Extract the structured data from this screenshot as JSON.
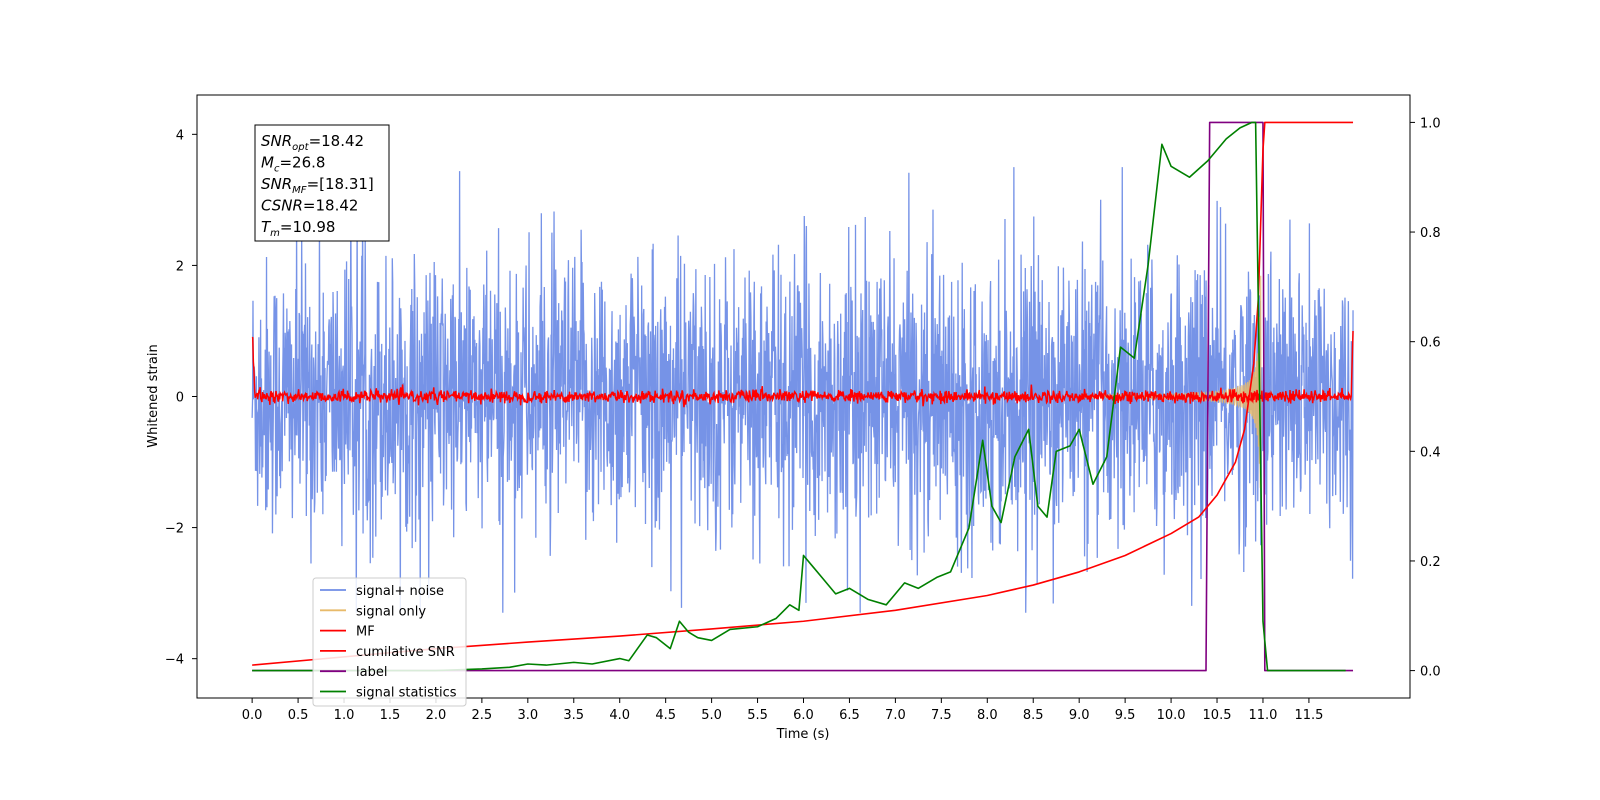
{
  "chart_data": {
    "type": "line",
    "title": "",
    "xlabel": "Time (s)",
    "ylabel": "Whitened strain",
    "y2label": "",
    "xlim": [
      -0.6,
      12.6
    ],
    "ylim": [
      -4.6,
      4.6
    ],
    "y2lim": [
      -0.05,
      1.05
    ],
    "xticks": [
      "0.0",
      "0.5",
      "1.0",
      "1.5",
      "2.0",
      "2.5",
      "3.0",
      "3.5",
      "4.0",
      "4.5",
      "5.0",
      "5.5",
      "6.0",
      "6.5",
      "7.0",
      "7.5",
      "8.0",
      "8.5",
      "9.0",
      "9.5",
      "10.0",
      "10.5",
      "11.0",
      "11.5"
    ],
    "yticks": [
      "4",
      "2",
      "0",
      "−2",
      "−4"
    ],
    "y2ticks": [
      "1.0",
      "0.8",
      "0.6",
      "0.4",
      "0.2",
      "0.0"
    ],
    "grid": false,
    "legend_position": "lower-left",
    "colors": {
      "signal_noise": "#6f8de6",
      "signal_only": "#e8ba6a",
      "mf": "#ff0000",
      "cumulative_snr": "#ff0000",
      "label": "#800080",
      "signal_statistics": "#008000"
    },
    "series": [
      {
        "name": "signal+ noise",
        "axis": "left",
        "kind": "noise",
        "t_start": 0.0,
        "t_end": 11.98,
        "amplitude_range": [
          -3.3,
          3.5
        ]
      },
      {
        "name": "signal only",
        "axis": "left",
        "kind": "chirp",
        "t_start": 9.0,
        "t_end": 10.98,
        "peak_amplitude": 2.0
      },
      {
        "name": "MF",
        "axis": "left",
        "kind": "mf",
        "t_start": 0.0,
        "t_end": 11.98,
        "edge_value": 1.0,
        "noise_level": 0.08
      },
      {
        "name": "cumilative SNR",
        "axis": "right",
        "x": [
          0.0,
          1.0,
          2.0,
          3.0,
          4.0,
          5.0,
          6.0,
          7.0,
          8.0,
          8.5,
          9.0,
          9.5,
          10.0,
          10.3,
          10.5,
          10.7,
          10.8,
          10.9,
          10.95,
          11.0,
          11.02,
          11.98
        ],
        "y": [
          0.01,
          0.025,
          0.04,
          0.052,
          0.063,
          0.076,
          0.09,
          0.11,
          0.137,
          0.156,
          0.18,
          0.21,
          0.25,
          0.28,
          0.32,
          0.38,
          0.44,
          0.56,
          0.68,
          0.95,
          1.0,
          1.0
        ]
      },
      {
        "name": "label",
        "axis": "right",
        "x": [
          0.0,
          10.38,
          10.42,
          11.0,
          11.02,
          11.98
        ],
        "y": [
          0.0,
          0.0,
          1.0,
          1.0,
          0.0,
          0.0
        ]
      },
      {
        "name": "signal statistics",
        "axis": "right",
        "x": [
          0.0,
          1.0,
          2.0,
          2.5,
          2.8,
          3.0,
          3.2,
          3.5,
          3.7,
          4.0,
          4.1,
          4.3,
          4.4,
          4.55,
          4.65,
          4.75,
          4.85,
          5.0,
          5.2,
          5.5,
          5.7,
          5.85,
          5.95,
          6.0,
          6.1,
          6.2,
          6.35,
          6.5,
          6.7,
          6.9,
          7.1,
          7.25,
          7.45,
          7.6,
          7.8,
          7.95,
          8.05,
          8.15,
          8.3,
          8.45,
          8.55,
          8.65,
          8.75,
          8.9,
          9.0,
          9.15,
          9.3,
          9.45,
          9.6,
          9.75,
          9.9,
          10.0,
          10.2,
          10.4,
          10.6,
          10.75,
          10.88,
          10.92,
          11.0,
          11.05,
          11.2,
          11.9
        ],
        "y": [
          0.0,
          0.0,
          0.0,
          0.003,
          0.006,
          0.012,
          0.01,
          0.015,
          0.012,
          0.022,
          0.018,
          0.065,
          0.06,
          0.04,
          0.09,
          0.07,
          0.06,
          0.055,
          0.075,
          0.08,
          0.095,
          0.12,
          0.11,
          0.21,
          0.19,
          0.17,
          0.14,
          0.15,
          0.13,
          0.12,
          0.16,
          0.15,
          0.17,
          0.18,
          0.26,
          0.42,
          0.3,
          0.27,
          0.39,
          0.44,
          0.3,
          0.28,
          0.4,
          0.41,
          0.44,
          0.34,
          0.39,
          0.59,
          0.57,
          0.74,
          0.96,
          0.92,
          0.9,
          0.93,
          0.97,
          0.99,
          1.0,
          1.0,
          0.09,
          0.0,
          0.0,
          0.0
        ]
      }
    ],
    "annotation": {
      "lines": [
        {
          "var": "SNR",
          "sub": "opt",
          "value": "=18.42"
        },
        {
          "var": "M",
          "sub": "c",
          "value": "=26.8"
        },
        {
          "var": "SNR",
          "sub": "MF",
          "value": "=[18.31]"
        },
        {
          "var": "CSNR",
          "sub": "",
          "value": "=18.42"
        },
        {
          "var": "T",
          "sub": "m",
          "value": "=10.98"
        }
      ]
    }
  }
}
